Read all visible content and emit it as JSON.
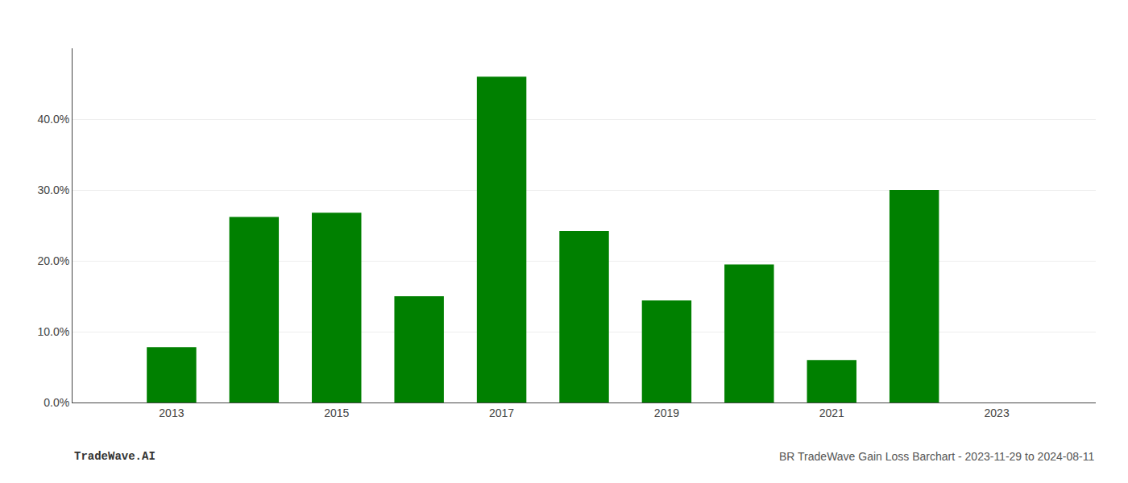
{
  "chart_data": {
    "type": "bar",
    "x": [
      2013,
      2014,
      2015,
      2016,
      2017,
      2018,
      2019,
      2020,
      2021,
      2022
    ],
    "values": [
      0.078,
      0.262,
      0.268,
      0.15,
      0.46,
      0.242,
      0.144,
      0.195,
      0.06,
      0.3
    ],
    "color": "#008000",
    "xlim": [
      2011.8,
      2024.2
    ],
    "xticks": [
      2013,
      2015,
      2017,
      2019,
      2021,
      2023
    ],
    "ylim": [
      0,
      0.5
    ],
    "yticks": [
      {
        "value": 0.0,
        "label": "0.0%"
      },
      {
        "value": 0.1,
        "label": "10.0%"
      },
      {
        "value": 0.2,
        "label": "20.0%"
      },
      {
        "value": 0.3,
        "label": "30.0%"
      },
      {
        "value": 0.4,
        "label": "40.0%"
      }
    ],
    "grid": true,
    "annotations": [
      "TradeWave.AI",
      "BR TradeWave Gain Loss Barchart - 2023-11-29 to 2024-08-11"
    ]
  }
}
